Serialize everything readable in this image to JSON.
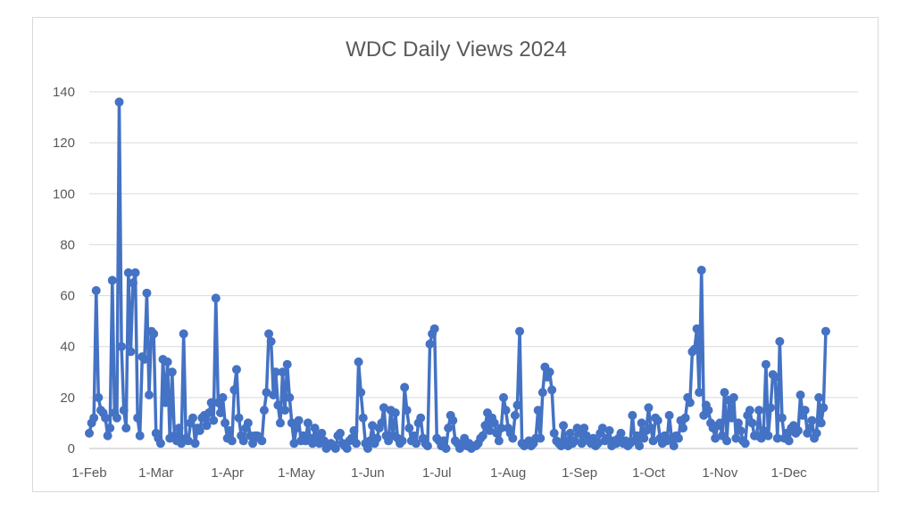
{
  "chart_data": {
    "type": "line",
    "title": "WDC Daily Views 2024",
    "xlabel": "",
    "ylabel": "",
    "ylim": [
      0,
      140
    ],
    "yticks": [
      "0",
      "20",
      "40",
      "60",
      "80",
      "100",
      "120",
      "140"
    ],
    "xlim": [
      "2024-02-01",
      "2024-12-31"
    ],
    "xticks": [
      {
        "label": "1-Feb",
        "date": "2024-02-01"
      },
      {
        "label": "1-Mar",
        "date": "2024-03-01"
      },
      {
        "label": "1-Apr",
        "date": "2024-04-01"
      },
      {
        "label": "1-May",
        "date": "2024-05-01"
      },
      {
        "label": "1-Jun",
        "date": "2024-06-01"
      },
      {
        "label": "1-Jul",
        "date": "2024-07-01"
      },
      {
        "label": "1-Aug",
        "date": "2024-08-01"
      },
      {
        "label": "1-Sep",
        "date": "2024-09-01"
      },
      {
        "label": "1-Oct",
        "date": "2024-10-01"
      },
      {
        "label": "1-Nov",
        "date": "2024-11-01"
      },
      {
        "label": "1-Dec",
        "date": "2024-12-01"
      }
    ],
    "grid": true,
    "legend": "none",
    "color": "#4472c4",
    "series": [
      {
        "start_date": "2024-02-01",
        "values": [
          6,
          10,
          12,
          62,
          20,
          15,
          14,
          12,
          5,
          8,
          66,
          14,
          12,
          136,
          40,
          15,
          8,
          69,
          38,
          65,
          69,
          12,
          5,
          36,
          35,
          61,
          21,
          46,
          45,
          6,
          4,
          2,
          35,
          18,
          34,
          4,
          30,
          5,
          3,
          8,
          2,
          45,
          4,
          3,
          10,
          12,
          2,
          8,
          7,
          12,
          13,
          9,
          14,
          18,
          11,
          59,
          18,
          14,
          20,
          10,
          4,
          7,
          3,
          23,
          31,
          12,
          5,
          3,
          8,
          10,
          5,
          2,
          5,
          5,
          4,
          3,
          15,
          22,
          45,
          42,
          21,
          30,
          17,
          10,
          30,
          15,
          33,
          20,
          10,
          2,
          8,
          11,
          3,
          5,
          3,
          10,
          4,
          2,
          8,
          4,
          2,
          6,
          3,
          0,
          1,
          2,
          1,
          0,
          5,
          6,
          2,
          1,
          0,
          3,
          4,
          7,
          2,
          34,
          22,
          12,
          2,
          0,
          3,
          9,
          2,
          4,
          8,
          10,
          16,
          5,
          3,
          15,
          5,
          14,
          4,
          2,
          3,
          24,
          15,
          8,
          3,
          5,
          2,
          10,
          12,
          4,
          2,
          1,
          41,
          45,
          47,
          4,
          3,
          1,
          3,
          0,
          8,
          13,
          11,
          3,
          2,
          0,
          2,
          4,
          1,
          2,
          0,
          1,
          1,
          2,
          4,
          5,
          9,
          14,
          7,
          12,
          10,
          6,
          3,
          8,
          20,
          15,
          8,
          6,
          4,
          13,
          17,
          46,
          2,
          1,
          2,
          3,
          1,
          2,
          4,
          15,
          4,
          22,
          32,
          28,
          30,
          23,
          6,
          3,
          2,
          1,
          9,
          3,
          1,
          6,
          2,
          3,
          8,
          6,
          2,
          8,
          5,
          3,
          2,
          4,
          1,
          2,
          6,
          8,
          3,
          4,
          7,
          1,
          3,
          2,
          4,
          6,
          2,
          3,
          1,
          2,
          13,
          3,
          5,
          1,
          10,
          4,
          7,
          16,
          8,
          3,
          12,
          11,
          4,
          2,
          5,
          3,
          13,
          4,
          1,
          5,
          4,
          11,
          8,
          12,
          20,
          18,
          38,
          39,
          47,
          22,
          70,
          13,
          17,
          15,
          10,
          8,
          4,
          9,
          10,
          5,
          22,
          3,
          19,
          12,
          20,
          4,
          10,
          7,
          3,
          2,
          13,
          15,
          10,
          5,
          5,
          15,
          4,
          7,
          33,
          5,
          16,
          29,
          28,
          4,
          42,
          12,
          4,
          6,
          3,
          8,
          9,
          6,
          7,
          21,
          13,
          15,
          6,
          8,
          11,
          4,
          6,
          20,
          10,
          16,
          46
        ]
      }
    ]
  }
}
